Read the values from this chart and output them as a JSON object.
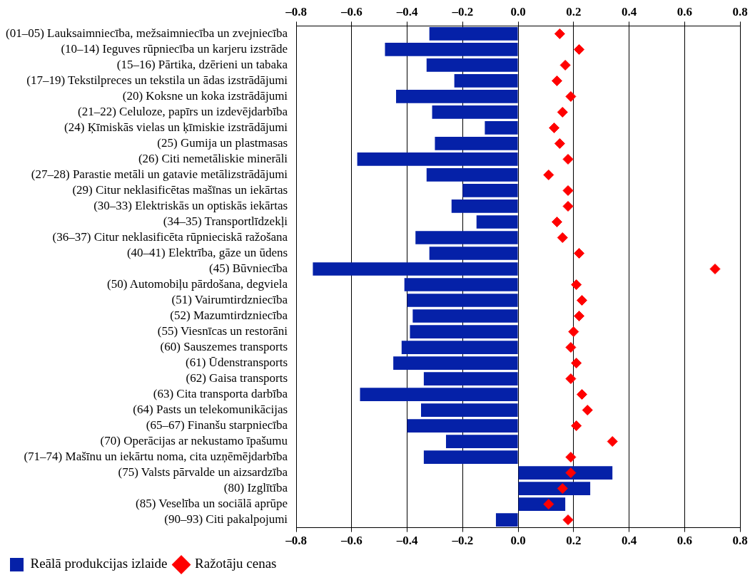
{
  "chart_data": {
    "type": "bar",
    "orientation": "horizontal",
    "categories": [
      "(01–05) Lauksaimniecība, mežsaimniecība un zvejniecība",
      "(10–14) Ieguves rūpniecība un karjeru izstrāde",
      "(15–16) Pārtika, dzērieni un tabaka",
      "(17–19) Tekstilpreces un tekstila un ādas izstrādājumi",
      "(20) Koksne un koka izstrādājumi",
      "(21–22) Celuloze, papīrs un izdevējdarbība",
      "(24) Ķīmiskās vielas un ķīmiskie izstrādājumi",
      "(25) Gumija un plastmasas",
      "(26) Citi nemetāliskie minerāli",
      "(27–28) Parastie metāli un gatavie metālizstrādājumi",
      "(29) Citur neklasificētas mašīnas un iekārtas",
      "(30–33) Elektriskās un optiskās iekārtas",
      "(34–35) Transportlīdzekļi",
      "(36–37) Citur neklasificēta rūpnieciskā ražošana",
      "(40–41) Elektrība, gāze un ūdens",
      "(45) Būvniecība",
      "(50) Automobiļu pārdošana, degviela",
      "(51) Vairumtirdzniecība",
      "(52) Mazumtirdzniecība",
      "(55) Viesnīcas un restorāni",
      "(60) Sauszemes transports",
      "(61) Ūdenstransports",
      "(62) Gaisa transports",
      "(63) Cita transporta darbība",
      "(64) Pasts un telekomunikācijas",
      "(65–67) Finanšu starpniecība",
      "(70) Operācijas ar nekustamo īpašumu",
      "(71–74) Mašīnu un iekārtu noma, cita uzņēmējdarbība",
      "(75) Valsts pārvalde un aizsardzība",
      "(80) Izglītība",
      "(85) Veselība un sociālā aprūpe",
      "(90–93) Citi pakalpojumi"
    ],
    "series": [
      {
        "name": "Reālā produkcijas izlaide",
        "color": "#0521a8",
        "values": [
          -0.32,
          -0.48,
          -0.33,
          -0.23,
          -0.44,
          -0.31,
          -0.12,
          -0.3,
          -0.58,
          -0.33,
          -0.2,
          -0.24,
          -0.15,
          -0.37,
          -0.32,
          -0.74,
          -0.41,
          -0.4,
          -0.38,
          -0.39,
          -0.42,
          -0.45,
          -0.34,
          -0.57,
          -0.35,
          -0.4,
          -0.26,
          -0.34,
          0.34,
          0.26,
          0.17,
          -0.08
        ]
      },
      {
        "name": "Ražotāju cenas",
        "type": "scatter",
        "marker": "diamond",
        "color": "#ff0000",
        "values": [
          0.15,
          0.22,
          0.17,
          0.14,
          0.19,
          0.16,
          0.13,
          0.15,
          0.18,
          0.11,
          0.18,
          0.18,
          0.14,
          0.16,
          0.22,
          0.71,
          0.21,
          0.23,
          0.22,
          0.2,
          0.19,
          0.21,
          0.19,
          0.23,
          0.25,
          0.21,
          0.34,
          0.19,
          0.19,
          0.16,
          0.11,
          0.18
        ]
      }
    ],
    "xlim": [
      -0.8,
      0.8
    ],
    "xticks": [
      {
        "value": -0.8,
        "label": "–0.8"
      },
      {
        "value": -0.6,
        "label": "–0.6"
      },
      {
        "value": -0.4,
        "label": "–0.4"
      },
      {
        "value": -0.2,
        "label": "–0.2"
      },
      {
        "value": 0,
        "label": "0.0"
      },
      {
        "value": 0.2,
        "label": "0.2"
      },
      {
        "value": 0.4,
        "label": "0.4"
      },
      {
        "value": 0.6,
        "label": "0.6"
      },
      {
        "value": 0.8,
        "label": "0.8"
      }
    ],
    "x2lim": [
      -0.8,
      0.8
    ],
    "x2ticks": [
      {
        "value": -0.8,
        "label": "–0.8"
      },
      {
        "value": -0.6,
        "label": "–0.6"
      },
      {
        "value": -0.4,
        "label": "–0.4"
      },
      {
        "value": -0.2,
        "label": "–0.2"
      },
      {
        "value": 0,
        "label": "0.0"
      },
      {
        "value": 0.2,
        "label": "0.2"
      },
      {
        "value": 0.4,
        "label": "0.4"
      },
      {
        "value": 0.6,
        "label": "0.6"
      },
      {
        "value": 0.8,
        "label": "0.8"
      }
    ],
    "grid": "x",
    "legend": "bottom left"
  }
}
